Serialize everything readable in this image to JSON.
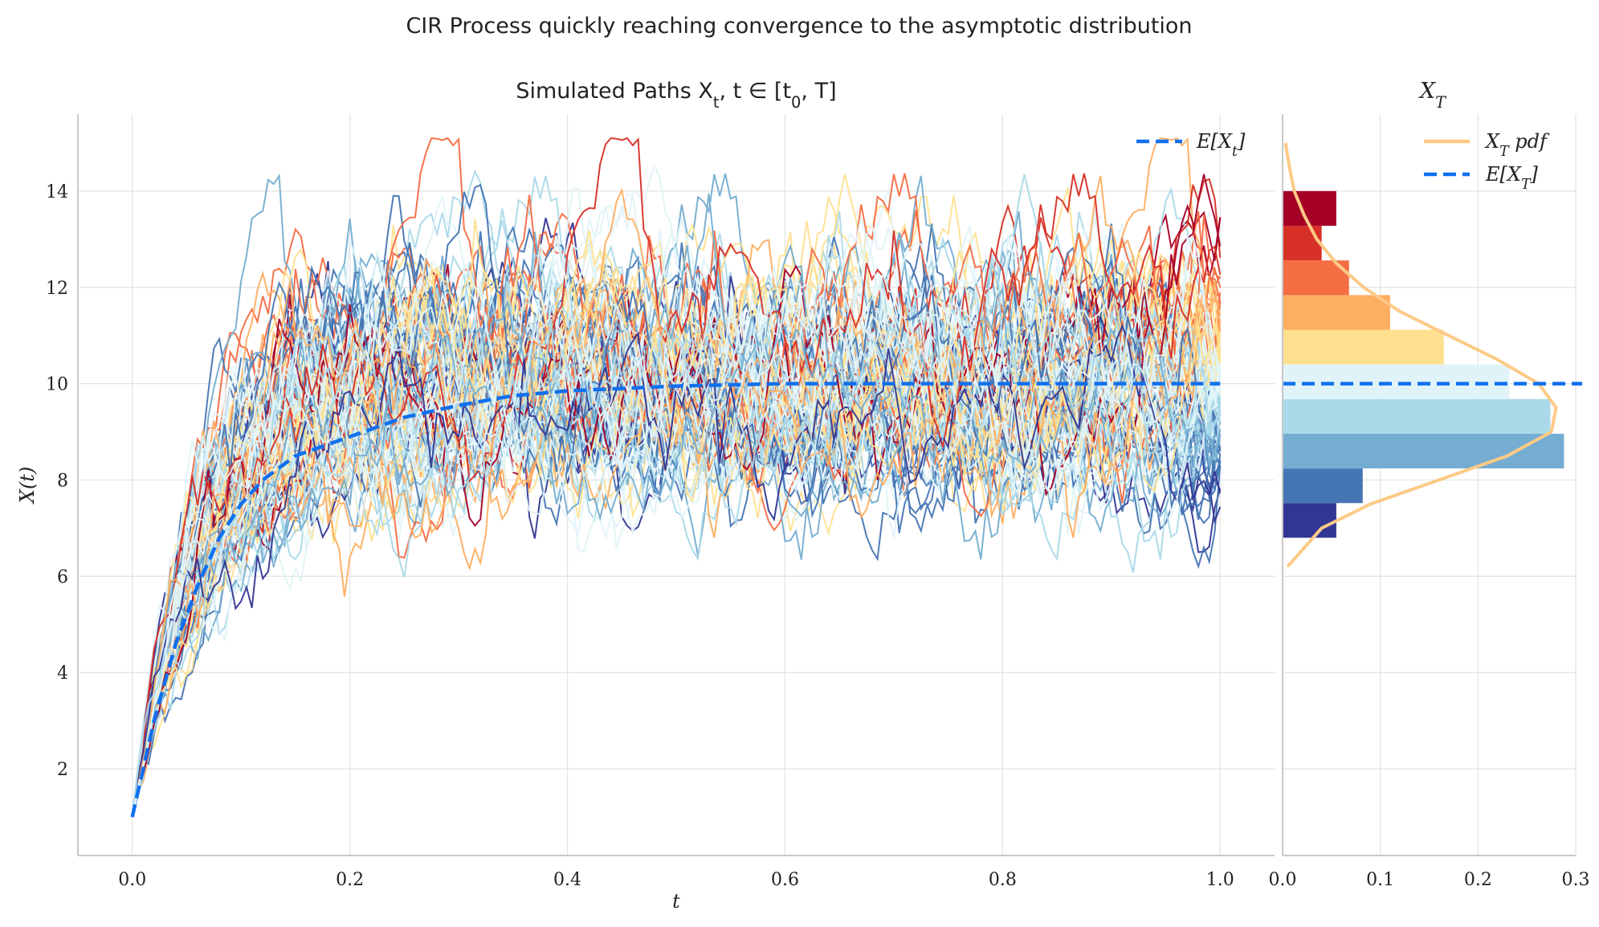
{
  "figure": {
    "suptitle": "CIR Process quickly reaching convergence to the asymptotic distribution"
  },
  "chart_data": [
    {
      "type": "line",
      "title": "Simulated Paths X_t, t ∈ [t_0, T]",
      "xlabel": "t",
      "ylabel": "X(t)",
      "xlim": [
        -0.05,
        1.05
      ],
      "ylim": [
        0.2,
        15.6
      ],
      "xticks": [
        "0.0",
        "0.2",
        "0.4",
        "0.6",
        "0.8",
        "1.0"
      ],
      "yticks": [
        "2",
        "4",
        "6",
        "8",
        "10",
        "12",
        "14"
      ],
      "grid": true,
      "legend": {
        "placement": "top-right",
        "entries": [
          "E[X_t]"
        ]
      },
      "paths": {
        "count": 100,
        "x_start": 0.0,
        "x_end": 1.0,
        "start_value": 1.0,
        "long_run_mean": 10.0,
        "final_value_range": [
          6.4,
          14.5
        ],
        "colormap": [
          "#313695",
          "#4575b4",
          "#74add1",
          "#abd9e9",
          "#e0f3f8",
          "#fee090",
          "#fdae61",
          "#f46d43",
          "#d73027",
          "#a50026"
        ],
        "colored_by": "final value"
      },
      "series": [
        {
          "name": "E[X_t]",
          "style": "dashed",
          "color": "#1070ee",
          "x": [
            0.0,
            0.02,
            0.04,
            0.06,
            0.08,
            0.1,
            0.12,
            0.15,
            0.2,
            0.25,
            0.3,
            0.35,
            0.4,
            0.5,
            0.6,
            0.7,
            0.8,
            0.9,
            1.0
          ],
          "y": [
            1.0,
            3.0,
            4.6,
            5.8,
            6.8,
            7.5,
            8.0,
            8.5,
            8.9,
            9.3,
            9.55,
            9.75,
            9.85,
            9.95,
            10.0,
            10.0,
            10.0,
            10.0,
            10.0
          ]
        }
      ]
    },
    {
      "type": "bar",
      "orientation": "horizontal",
      "title": "X_T",
      "xlim": [
        0,
        0.3
      ],
      "ylim": [
        0.2,
        15.6
      ],
      "xticks": [
        "0.0",
        "0.1",
        "0.2",
        "0.3"
      ],
      "grid": true,
      "legend": {
        "placement": "top-right",
        "entries": [
          "X_T pdf",
          "E[X_T]"
        ]
      },
      "bin_edges": [
        6.8,
        7.52,
        8.24,
        8.96,
        9.68,
        10.4,
        11.12,
        11.84,
        12.56,
        13.28,
        14.0
      ],
      "density": [
        0.055,
        0.082,
        0.288,
        0.274,
        0.232,
        0.165,
        0.11,
        0.068,
        0.04,
        0.055
      ],
      "bar_colors": [
        "#313695",
        "#4575b4",
        "#74add1",
        "#abd9e9",
        "#e0f3f8",
        "#fee090",
        "#fdae61",
        "#f46d43",
        "#d73027",
        "#a50026"
      ],
      "series": [
        {
          "name": "X_T pdf",
          "color": "#fdca86",
          "y": [
            6.2,
            7.0,
            7.5,
            8.0,
            8.5,
            9.0,
            9.5,
            10.0,
            10.5,
            11.0,
            11.5,
            12.0,
            12.5,
            13.0,
            13.5,
            14.0,
            14.5,
            15.0
          ],
          "x": [
            0.005,
            0.04,
            0.09,
            0.16,
            0.23,
            0.275,
            0.28,
            0.262,
            0.22,
            0.17,
            0.12,
            0.083,
            0.055,
            0.035,
            0.022,
            0.012,
            0.007,
            0.003
          ]
        },
        {
          "name": "E[X_T]",
          "style": "dashed",
          "color": "#1070ee",
          "y_value": 10.0
        }
      ]
    }
  ]
}
